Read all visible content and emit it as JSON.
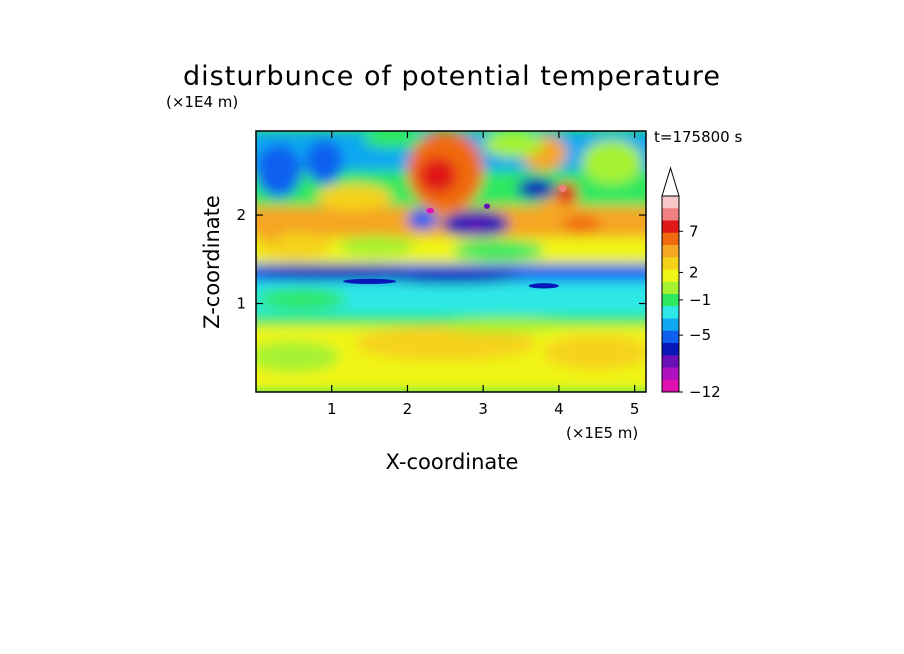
{
  "chart_data": {
    "type": "heatmap",
    "title": "disturbunce of potential temperature",
    "xlabel": "X-coordinate",
    "ylabel": "Z-coordinate",
    "x_scale_label": "(×1E5 m)",
    "y_scale_label": "(×1E4 m)",
    "time_label": "t=175800 s",
    "xlim": [
      0,
      5.15
    ],
    "ylim": [
      0,
      2.95
    ],
    "x_ticks": [
      "1",
      "2",
      "3",
      "4",
      "5"
    ],
    "y_ticks": [
      "1",
      "2"
    ],
    "colorbar": {
      "labels": [
        "7",
        "2",
        "−1",
        "−5",
        "−12"
      ],
      "extend": "max",
      "colors": [
        "#f8c8c8",
        "#f08080",
        "#e01818",
        "#f06a10",
        "#f5a623",
        "#f5d21a",
        "#f0f518",
        "#a6f230",
        "#2ee860",
        "#2ee8e8",
        "#10a8f0",
        "#1060f0",
        "#0818b8",
        "#6a10b8",
        "#b010c0",
        "#e010b0"
      ]
    },
    "features": [
      {
        "name": "warm anomaly upper middle",
        "x": 2.4,
        "z": 2.5,
        "value": 5
      },
      {
        "name": "cold core",
        "x": 2.9,
        "z": 1.9,
        "value": -5
      },
      {
        "name": "warm wave train",
        "x": 4.1,
        "z": 2.2,
        "value": 7
      },
      {
        "name": "cold band",
        "x": 2.0,
        "z": 1.3,
        "value": -4
      },
      {
        "name": "cool layer",
        "x": 2.5,
        "z": 1.05,
        "value": -2
      },
      {
        "name": "warm lower layer",
        "x": 2.5,
        "z": 0.4,
        "value": 1
      }
    ]
  }
}
